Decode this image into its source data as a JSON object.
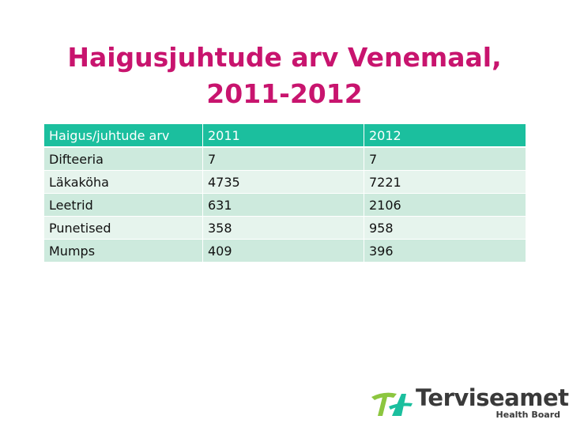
{
  "title": {
    "line1": "Haigusjuhtude arv Venemaal,",
    "line2": "2011-2012"
  },
  "table": {
    "headers": [
      "Haigus/juhtude arv",
      "2011",
      "2012"
    ],
    "rows": [
      [
        "Difteeria",
        "7",
        "7"
      ],
      [
        "Läkaköha",
        "4735",
        "7221"
      ],
      [
        "Leetrid",
        "631",
        "2106"
      ],
      [
        "Punetised",
        "358",
        "958"
      ],
      [
        "Mumps",
        "409",
        "396"
      ]
    ]
  },
  "logo": {
    "name": "Terviseamet",
    "subtitle": "Health Board",
    "icon": "terviseamet-logo-icon",
    "colors": {
      "green": "#8cc63f",
      "teal": "#1bbf9e",
      "text": "#3a3a3a"
    }
  },
  "colors": {
    "title": "#c8146e",
    "header_bg": "#1bbf9e",
    "row_odd": "#cdeadd",
    "row_even": "#e6f4ed"
  }
}
